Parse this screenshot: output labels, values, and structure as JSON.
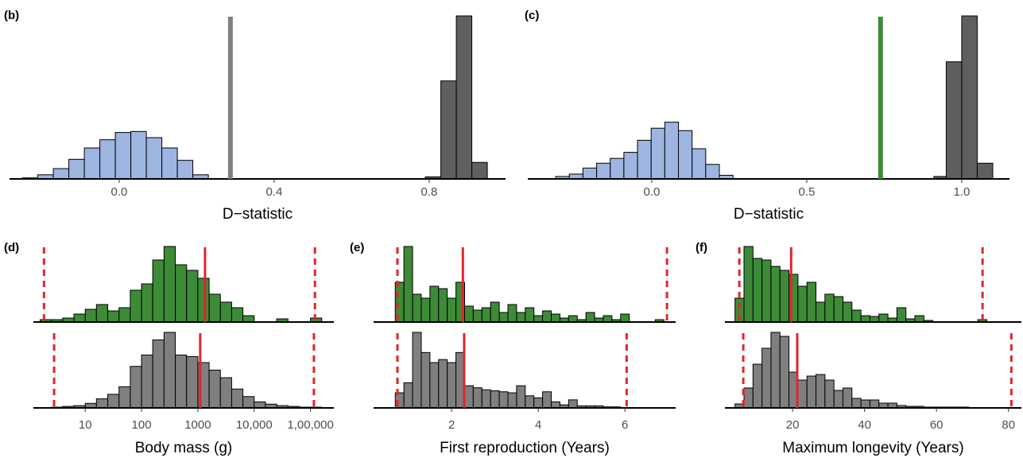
{
  "chart_data": [
    {
      "type": "histogram",
      "panel_label": "(b)",
      "xlabel": "D−statistic",
      "xlim": [
        -0.283,
        0.997
      ],
      "xticks": [
        {
          "value": 0,
          "label": "0.0"
        },
        0.4,
        0.8
      ],
      "rows": [
        {
          "series": [
            {
              "color": "#9db5e0",
              "bins": [
                -0.25,
                -0.21,
                -0.17,
                -0.13,
                -0.09,
                -0.05,
                -0.01,
                0.03,
                0.07,
                0.11,
                0.15,
                0.19,
                0.23
              ],
              "values": [
                1,
                4,
                10,
                19,
                30,
                38,
                45,
                46,
                40,
                30,
                18,
                4
              ]
            },
            {
              "color": "#5f5f5f",
              "bins": [
                0.79,
                0.83,
                0.87,
                0.91,
                0.95
              ],
              "values": [
                2,
                95,
                158,
                16
              ]
            }
          ],
          "vlines": [
            {
              "x": 0.287,
              "color": "#808080",
              "dashed": false
            }
          ]
        }
      ]
    },
    {
      "type": "histogram",
      "panel_label": "(c)",
      "xlabel": "D−statistic",
      "xlim": [
        -0.4,
        1.154
      ],
      "xticks": [
        {
          "value": 0,
          "label": "0.0"
        },
        0.5,
        {
          "value": 1,
          "label": "1.0"
        }
      ],
      "rows": [
        {
          "series": [
            {
              "color": "#9db5e0",
              "bins": [
                -0.31,
                -0.266,
                -0.222,
                -0.178,
                -0.134,
                -0.09,
                -0.046,
                -0.002,
                0.042,
                0.086,
                0.13,
                0.174,
                0.218,
                0.262
              ],
              "values": [
                2,
                4,
                9,
                13,
                17,
                22,
                32,
                42,
                47,
                40,
                25,
                12,
                3
              ]
            },
            {
              "color": "#5f5f5f",
              "bins": [
                0.91,
                0.95,
                1.0,
                1.05,
                1.1
              ],
              "values": [
                2,
                97,
                135,
                13
              ]
            }
          ],
          "vlines": [
            {
              "x": 0.738,
              "color": "#3d8b37",
              "dashed": false
            }
          ]
        }
      ]
    },
    {
      "type": "histogram",
      "panel_label": "(d)",
      "xlabel": "Body mass (g)",
      "log": true,
      "xlim": [
        1.2,
        260000
      ],
      "xticks": [
        10,
        100,
        1000,
        {
          "value": 10000,
          "label": "10,000"
        },
        {
          "value": 100000,
          "label": "1,00,000"
        }
      ],
      "rows": [
        {
          "series": [
            {
              "color": "#3d8b37",
              "bins": [
                1.58,
                2.51,
                3.98,
                6.31,
                10,
                15.8,
                25.1,
                39.8,
                63.1,
                100,
                158,
                251,
                398,
                631,
                1000,
                1585,
                2512,
                3981,
                6310,
                10000,
                15849,
                25119,
                39811,
                63096,
                100000,
                158489
              ],
              "values": [
                3,
                3,
                5,
                10,
                16,
                22,
                14,
                18,
                40,
                48,
                78,
                95,
                72,
                65,
                55,
                35,
                25,
                18,
                8,
                0,
                0,
                4,
                0,
                0,
                5
              ]
            }
          ],
          "vlines": [
            {
              "x": 1340,
              "color": "#e3242b",
              "dashed": false
            },
            {
              "x": 1.85,
              "color": "#e3242b",
              "dashed": true
            },
            {
              "x": 120000,
              "color": "#e3242b",
              "dashed": true
            }
          ]
        },
        {
          "series": [
            {
              "color": "#7f7f7f",
              "bins": [
                1.58,
                2.51,
                3.98,
                6.31,
                10,
                15.8,
                25.1,
                39.8,
                63.1,
                100,
                158,
                251,
                398,
                631,
                1000,
                1585,
                2512,
                3981,
                6310,
                10000,
                15849,
                25119,
                39811,
                63096,
                100000,
                158489
              ],
              "values": [
                0,
                1,
                2,
                3,
                6,
                12,
                18,
                28,
                55,
                70,
                90,
                100,
                70,
                68,
                60,
                50,
                40,
                25,
                15,
                8,
                5,
                3,
                2,
                1,
                1
              ]
            }
          ],
          "vlines": [
            {
              "x": 1100,
              "color": "#e3242b",
              "dashed": false
            },
            {
              "x": 2.8,
              "color": "#e3242b",
              "dashed": true
            },
            {
              "x": 115000,
              "color": "#e3242b",
              "dashed": true
            }
          ]
        }
      ]
    },
    {
      "type": "histogram",
      "panel_label": "(e)",
      "xlabel": "First reproduction (Years)",
      "xlim": [
        0.2,
        7.17
      ],
      "xticks": [
        2,
        4,
        6
      ],
      "rows": [
        {
          "series": [
            {
              "color": "#3d8b37",
              "bins": [
                0.7,
                0.9,
                1.1,
                1.3,
                1.5,
                1.7,
                1.9,
                2.1,
                2.3,
                2.5,
                2.7,
                2.9,
                3.1,
                3.3,
                3.5,
                3.7,
                3.9,
                4.1,
                4.3,
                4.5,
                4.7,
                4.9,
                5.1,
                5.3,
                5.5,
                5.7,
                5.9,
                6.1,
                6.3,
                6.5,
                6.7,
                6.9
              ],
              "values": [
                50,
                95,
                35,
                30,
                45,
                42,
                30,
                50,
                20,
                15,
                18,
                25,
                12,
                22,
                12,
                18,
                8,
                14,
                10,
                5,
                8,
                3,
                12,
                5,
                8,
                3,
                10,
                0,
                0,
                0,
                3
              ]
            }
          ],
          "vlines": [
            {
              "x": 2.26,
              "color": "#e3242b",
              "dashed": false
            },
            {
              "x": 0.75,
              "color": "#e3242b",
              "dashed": true
            },
            {
              "x": 6.97,
              "color": "#e3242b",
              "dashed": true
            }
          ]
        },
        {
          "series": [
            {
              "color": "#7f7f7f",
              "bins": [
                0.7,
                0.9,
                1.1,
                1.3,
                1.5,
                1.7,
                1.9,
                2.1,
                2.3,
                2.5,
                2.7,
                2.9,
                3.1,
                3.3,
                3.5,
                3.7,
                3.9,
                4.1,
                4.3,
                4.5,
                4.7,
                4.9,
                5.1,
                5.3,
                5.5,
                5.7,
                5.9,
                6.1,
                6.3,
                6.5,
                6.7,
                6.9
              ],
              "values": [
                15,
                25,
                75,
                55,
                45,
                48,
                45,
                55,
                22,
                20,
                18,
                17,
                16,
                15,
                22,
                12,
                10,
                16,
                6,
                3,
                8,
                2,
                2,
                2,
                1,
                1,
                0,
                0,
                0,
                0,
                0
              ]
            }
          ],
          "vlines": [
            {
              "x": 2.29,
              "color": "#e3242b",
              "dashed": false
            },
            {
              "x": 0.75,
              "color": "#e3242b",
              "dashed": true
            },
            {
              "x": 6.04,
              "color": "#e3242b",
              "dashed": true
            }
          ]
        }
      ]
    },
    {
      "type": "histogram",
      "panel_label": "(f)",
      "xlabel": "Maximum longevity (Years)",
      "xlim": [
        1.2,
        83.6
      ],
      "xticks": [
        20,
        40,
        60,
        80
      ],
      "rows": [
        {
          "series": [
            {
              "color": "#3d8b37",
              "bins": [
                4,
                6.5,
                9,
                11.5,
                14,
                16.5,
                19,
                21.5,
                24,
                26.5,
                29,
                31.5,
                34,
                36.5,
                39,
                41.5,
                44,
                46.5,
                49,
                51.5,
                54,
                56.5,
                59,
                61.5,
                64,
                66.5,
                69,
                71.5,
                74
              ],
              "values": [
                30,
                95,
                80,
                78,
                70,
                65,
                60,
                45,
                50,
                25,
                35,
                32,
                25,
                15,
                8,
                7,
                10,
                5,
                18,
                4,
                8,
                2,
                0,
                0,
                0,
                0,
                0,
                3
              ]
            }
          ],
          "vlines": [
            {
              "x": 19.6,
              "color": "#e3242b",
              "dashed": false
            },
            {
              "x": 5.2,
              "color": "#e3242b",
              "dashed": true
            },
            {
              "x": 72.8,
              "color": "#e3242b",
              "dashed": true
            }
          ]
        },
        {
          "series": [
            {
              "color": "#7f7f7f",
              "bins": [
                4,
                6.5,
                9,
                11.5,
                14,
                16.5,
                19,
                21.5,
                24,
                26.5,
                29,
                31.5,
                34,
                36.5,
                39,
                41.5,
                44,
                46.5,
                49,
                51.5,
                54,
                56.5,
                59,
                61.5,
                64,
                66.5,
                69,
                71.5,
                74
              ],
              "values": [
                5,
                25,
                55,
                75,
                95,
                90,
                45,
                35,
                40,
                42,
                35,
                22,
                25,
                12,
                10,
                10,
                6,
                6,
                3,
                2,
                2,
                1,
                1,
                1,
                1,
                1,
                0,
                0
              ]
            }
          ],
          "vlines": [
            {
              "x": 21.3,
              "color": "#e3242b",
              "dashed": false
            },
            {
              "x": 6.3,
              "color": "#e3242b",
              "dashed": true
            },
            {
              "x": 80.8,
              "color": "#e3242b",
              "dashed": true
            }
          ]
        }
      ]
    }
  ]
}
